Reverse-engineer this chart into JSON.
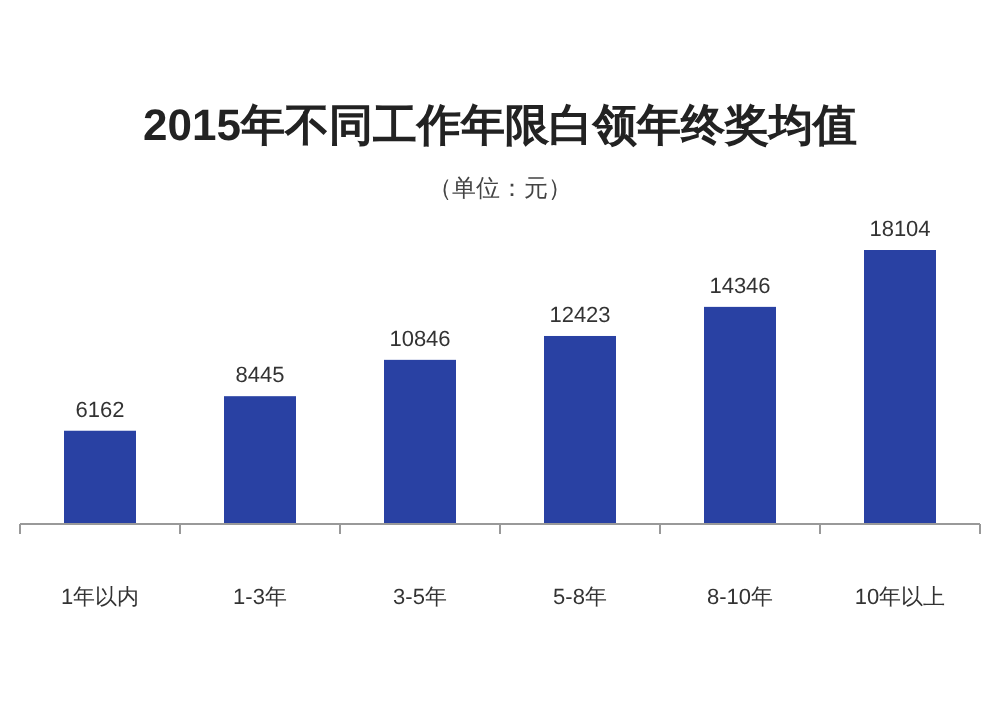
{
  "chart_data": {
    "type": "bar",
    "title": "2015年不同工作年限白领年终奖均值",
    "subtitle": "（单位：元）",
    "categories": [
      "1年以内",
      "1-3年",
      "3-5年",
      "5-8年",
      "8-10年",
      "10年以上"
    ],
    "values": [
      6162,
      8445,
      10846,
      12423,
      14346,
      18104
    ],
    "color": "#2941a3",
    "data_labels": true
  }
}
